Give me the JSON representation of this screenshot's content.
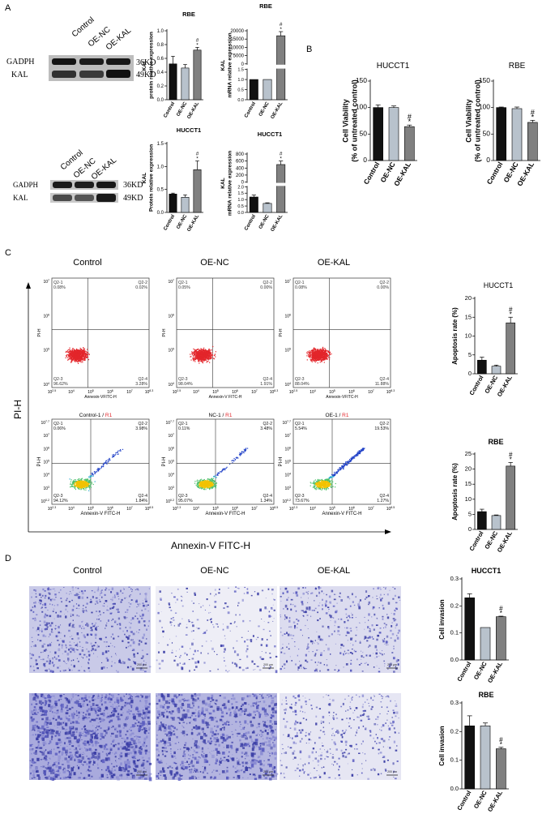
{
  "panel_labels": {
    "a": "A",
    "b": "B",
    "c": "C",
    "d": "D"
  },
  "colors": {
    "control": "#111111",
    "oe_nc": "#b8c2cc",
    "oe_kal": "#808080",
    "flow_top": "#e3262b",
    "invasion_stain": "#3c3fa6"
  },
  "western_blots": [
    {
      "lanes": [
        "Control",
        "OE-NC",
        "OE-KAL"
      ],
      "bands": [
        "GADPH",
        "KAL"
      ],
      "sizes": [
        "36KD",
        "49KD"
      ]
    },
    {
      "lanes": [
        "Control",
        "OE-NC",
        "OE-KAL"
      ],
      "bands": [
        "GADPH",
        "KAL"
      ],
      "sizes": [
        "36KD",
        "49KD"
      ]
    }
  ],
  "flow": {
    "column_titles": [
      "Control",
      "OE-NC",
      "OE-KAL"
    ],
    "y_axis_label": "PI-H",
    "x_axis_label": "Annexin-V FITC-H",
    "r1_suffix": "R1",
    "top_row": [
      {
        "q21": "Q2-1",
        "q21v": "0.08%",
        "q22": "Q2-2",
        "q22v": "0.02%",
        "q23": "Q2-3",
        "q23v": "96.62%",
        "q24": "Q2-4",
        "q24v": "3.28%",
        "xlabel": "Annexin-VFITC-H",
        "ylabel": "PI-H"
      },
      {
        "q21": "Q2-1",
        "q21v": "0.05%",
        "q22": "Q2-2",
        "q22v": "0.00%",
        "q23": "Q2-3",
        "q23v": "98.04%",
        "q24": "Q2-4",
        "q24v": "1.91%",
        "xlabel": "Annexin-V FITC-H",
        "ylabel": "PI-H"
      },
      {
        "q21": "Q2-1",
        "q21v": "0.08%",
        "q22": "Q2-2",
        "q22v": "0.00%",
        "q23": "Q2-3",
        "q23v": "88.04%",
        "q24": "Q2-4",
        "q24v": "11.88%",
        "xlabel": "Annexin-VFITC-H",
        "ylabel": "PI-H"
      }
    ],
    "bottom_row": [
      {
        "title": "Control-1 / ",
        "q21": "Q2-1",
        "q21v": "0.06%",
        "q22": "Q2-2",
        "q22v": "3.98%",
        "q23": "Q2-3",
        "q23v": "94.12%",
        "q24": "Q2-4",
        "q24v": "1.84%",
        "xlabel": "Annexin-V FITC-H",
        "ylabel": "PI-H"
      },
      {
        "title": "NC-1 / ",
        "q21": "Q2-1",
        "q21v": "0.11%",
        "q22": "Q2-2",
        "q22v": "3.48%",
        "q23": "Q2-3",
        "q23v": "95.07%",
        "q24": "Q2-4",
        "q24v": "1.34%",
        "xlabel": "Annexin-V FITC-H",
        "ylabel": "PI-H"
      },
      {
        "title": "OE-1 / ",
        "q21": "Q2-1",
        "q21v": "5.54%",
        "q22": "Q2-2",
        "q22v": "19.53%",
        "q23": "Q2-3",
        "q23v": "73.67%",
        "q24": "Q2-4",
        "q24v": "1.27%",
        "xlabel": "Annexin-V FITC-H",
        "ylabel": "PI-H"
      }
    ],
    "top_x_ticks": [
      "10^2.5",
      "10^4",
      "10^5",
      "10^6",
      "10^7",
      "10^8.3"
    ],
    "top_y_ticks": [
      "10^7",
      "10^6",
      "10^5",
      "10^4"
    ],
    "bottom_x_ticks": [
      "10^2.3",
      "10^4",
      "10^5",
      "10^6",
      "10^7",
      "10^8.5"
    ],
    "bottom_y_ticks": [
      "10^7.7",
      "10^7",
      "10^6",
      "10^5",
      "10^4",
      "10^3",
      "10^0.2"
    ]
  },
  "invasion": {
    "column_titles": [
      "Control",
      "OE-NC",
      "OE-KAL"
    ],
    "scale_labels": [
      "200 μm",
      "200 μm",
      "200 μm",
      "200 μm",
      "200 μm",
      "200 μm"
    ]
  },
  "chart_data": [
    {
      "id": "a1",
      "type": "bar",
      "title": "RBE",
      "categories": [
        "Control",
        "OE-NC",
        "OE-KAL"
      ],
      "values": [
        0.52,
        0.46,
        0.72
      ],
      "errors": [
        0.11,
        0.05,
        0.04
      ],
      "ylabel": [
        "KAL",
        "protein relative expression"
      ],
      "ylim": [
        0,
        1.0
      ],
      "yticks": [
        "0.0",
        "0.2",
        "0.4",
        "0.6",
        "0.8",
        "1.0"
      ],
      "annotations": {
        "2": [
          "#",
          "*"
        ]
      }
    },
    {
      "id": "a2",
      "type": "bar",
      "title": "RBE",
      "categories": [
        "Control",
        "OE-NC",
        "OE-KAL"
      ],
      "values": [
        1,
        1,
        17000
      ],
      "errors": [
        0,
        0,
        2500
      ],
      "ylabel": [
        "KAL",
        "mRNA relative expression"
      ],
      "ylim": [
        0,
        20000
      ],
      "yticks": [
        "0",
        "5000",
        "10000",
        "15000",
        "20000"
      ],
      "broken_axis": {
        "lower": [
          0,
          1.5
        ],
        "lower_ticks": [
          "0.0",
          "0.5",
          "1.0",
          "1.5"
        ],
        "lower_values": [
          1.0,
          1.0
        ],
        "lower_errors": [
          0.08,
          0.08
        ]
      },
      "annotations": {
        "2": [
          "#",
          "*"
        ]
      }
    },
    {
      "id": "a3",
      "type": "bar",
      "title": "HUCCT1",
      "categories": [
        "Control",
        "OE-NC",
        "OE-KAL"
      ],
      "values": [
        0.4,
        0.33,
        0.93
      ],
      "errors": [
        0.02,
        0.05,
        0.19
      ],
      "ylabel": [
        "KAL",
        "Protein relative expression"
      ],
      "ylim": [
        0,
        1.5
      ],
      "yticks": [
        "0.0",
        "0.5",
        "1.0",
        "1.5"
      ],
      "annotations": {
        "2": [
          "#",
          "*"
        ]
      }
    },
    {
      "id": "a4",
      "type": "bar",
      "title": "HUCCT1",
      "categories": [
        "Control",
        "OE-NC",
        "OE-KAL"
      ],
      "values": [
        1.2,
        0.7,
        500
      ],
      "errors": [
        0.15,
        0.05,
        100
      ],
      "ylabel": [
        "KAL",
        "mRNA relative expression"
      ],
      "ylim": [
        0,
        800
      ],
      "yticks": [
        "0",
        "200",
        "400",
        "600",
        "800"
      ],
      "broken_axis": {
        "lower": [
          0,
          2
        ],
        "lower_ticks": [
          "0.0",
          "0.5",
          "1.0",
          "1.5",
          "2.0"
        ],
        "lower_values": [
          1.2,
          0.7
        ],
        "lower_errors": [
          0.15,
          0.05
        ]
      },
      "annotations": {
        "2": [
          "#",
          "*"
        ]
      }
    },
    {
      "id": "b1",
      "type": "bar",
      "title": "HUCCT1",
      "categories": [
        "Control",
        "OE-NC",
        "OE-KAL"
      ],
      "values": [
        100,
        100,
        64
      ],
      "errors": [
        5,
        3,
        3
      ],
      "ylabel": [
        "Cell Viability",
        "(% of untreated control)"
      ],
      "ylim": [
        0,
        150
      ],
      "yticks": [
        "0",
        "50",
        "100",
        "150"
      ],
      "annotations": {
        "2": [
          "#",
          "*"
        ]
      }
    },
    {
      "id": "b2",
      "type": "bar",
      "title": "RBE",
      "categories": [
        "Control",
        "OE-NC",
        "OE-KAL"
      ],
      "values": [
        100,
        98,
        72
      ],
      "errors": [
        1,
        3,
        4
      ],
      "ylabel": [
        "Cell Viability",
        "(% of untreated control)"
      ],
      "ylim": [
        0,
        150
      ],
      "yticks": [
        "0",
        "50",
        "100",
        "150"
      ],
      "annotations": {
        "2": [
          "#",
          "*"
        ]
      }
    },
    {
      "id": "c1",
      "type": "bar",
      "title": "HUCCT1",
      "categories": [
        "Control",
        "OE-NC",
        "OE-KAL"
      ],
      "values": [
        3.6,
        2.0,
        13.5
      ],
      "errors": [
        0.8,
        0.3,
        1.5
      ],
      "ylabel": [
        "Apoptosis rate (%)"
      ],
      "ylim": [
        0,
        20
      ],
      "yticks": [
        "0",
        "5",
        "10",
        "15",
        "20"
      ],
      "annotations": {
        "2": [
          "#",
          "*"
        ]
      }
    },
    {
      "id": "c2",
      "type": "bar",
      "title": "RBE",
      "categories": [
        "Control",
        "OE-NC",
        "OE-KAL"
      ],
      "values": [
        5.9,
        4.6,
        21.0
      ],
      "errors": [
        0.8,
        0.2,
        1.2
      ],
      "ylabel": [
        "Apoptosis rate (%)"
      ],
      "ylim": [
        0,
        25
      ],
      "yticks": [
        "0",
        "5",
        "10",
        "15",
        "20",
        "25"
      ],
      "annotations": {
        "2": [
          "#",
          "*"
        ]
      }
    },
    {
      "id": "d1",
      "type": "bar",
      "title": "HUCCT1",
      "categories": [
        "Control",
        "OE-NC",
        "OE-KAL"
      ],
      "values": [
        0.23,
        0.12,
        0.16
      ],
      "errors": [
        0.015,
        0,
        0.002
      ],
      "ylabel": [
        "Cell invasion"
      ],
      "ylim": [
        0,
        0.3
      ],
      "yticks": [
        "0.0",
        "0.1",
        "0.2",
        "0.3"
      ],
      "annotations": {
        "2": [
          "#",
          "*"
        ]
      }
    },
    {
      "id": "d2",
      "type": "bar",
      "title": "RBE",
      "categories": [
        "Control",
        "OE-NC",
        "OE-KAL"
      ],
      "values": [
        0.22,
        0.22,
        0.14
      ],
      "errors": [
        0.035,
        0.01,
        0.005
      ],
      "ylabel": [
        "Cell invasion"
      ],
      "ylim": [
        0,
        0.3
      ],
      "yticks": [
        "0.0",
        "0.1",
        "0.2",
        "0.3"
      ],
      "annotations": {
        "2": [
          "#",
          "*"
        ]
      }
    }
  ]
}
